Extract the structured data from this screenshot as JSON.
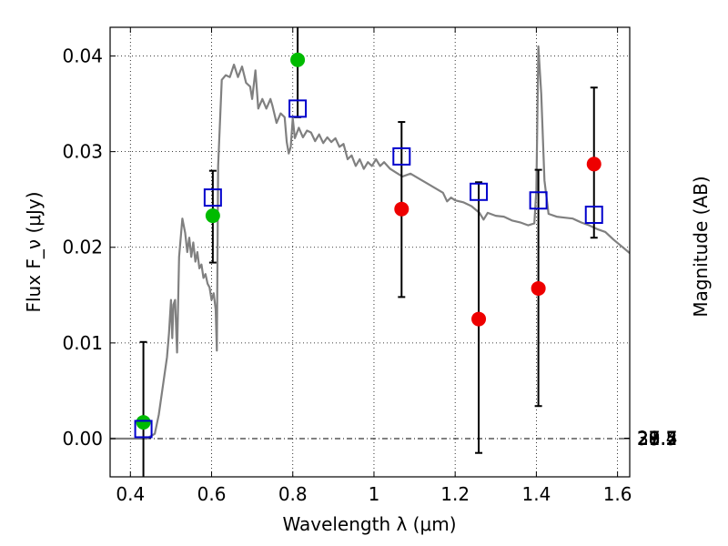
{
  "chart_data": {
    "type": "scatter",
    "title": "",
    "xlabel": "Wavelength λ (μm)",
    "ylabel": "Flux F_ν (μJy)",
    "y2label": "Magnitude (AB)",
    "xlim": [
      0.35,
      1.63
    ],
    "ylim": [
      -0.004,
      0.043
    ],
    "grid": true,
    "x_ticks": [
      "0.4",
      "0.6",
      "0.8",
      "1",
      "1.2",
      "1.4",
      "1.6"
    ],
    "y_ticks": [
      "0.00",
      "0.01",
      "0.02",
      "0.03",
      "0.04"
    ],
    "y2_ticks": [
      "27.4",
      "27.5",
      "27.7",
      "28",
      "28.2",
      "28.5",
      "29",
      "29.5",
      "30",
      "31"
    ],
    "colors": {
      "model": "#808080",
      "green": "#00bb00",
      "red": "#ee0000",
      "square": "#0000cc",
      "errorbar": "#000000"
    },
    "series": [
      {
        "name": "",
        "kind": "model-spectrum",
        "points": [
          [
            0.35,
            0.0
          ],
          [
            0.44,
            0.0
          ],
          [
            0.46,
            0.0005
          ],
          [
            0.47,
            0.0025
          ],
          [
            0.48,
            0.0055
          ],
          [
            0.49,
            0.0085
          ],
          [
            0.495,
            0.011
          ],
          [
            0.5,
            0.0145
          ],
          [
            0.503,
            0.0105
          ],
          [
            0.506,
            0.014
          ],
          [
            0.51,
            0.0145
          ],
          [
            0.515,
            0.009
          ],
          [
            0.52,
            0.019
          ],
          [
            0.528,
            0.023
          ],
          [
            0.535,
            0.0215
          ],
          [
            0.54,
            0.0195
          ],
          [
            0.545,
            0.021
          ],
          [
            0.55,
            0.019
          ],
          [
            0.555,
            0.0205
          ],
          [
            0.56,
            0.0185
          ],
          [
            0.565,
            0.0195
          ],
          [
            0.57,
            0.0178
          ],
          [
            0.575,
            0.0182
          ],
          [
            0.58,
            0.0168
          ],
          [
            0.585,
            0.0172
          ],
          [
            0.59,
            0.0162
          ],
          [
            0.595,
            0.0158
          ],
          [
            0.6,
            0.0145
          ],
          [
            0.605,
            0.0152
          ],
          [
            0.61,
            0.0135
          ],
          [
            0.613,
            0.0092
          ],
          [
            0.616,
            0.0285
          ],
          [
            0.625,
            0.0375
          ],
          [
            0.635,
            0.038
          ],
          [
            0.645,
            0.0378
          ],
          [
            0.655,
            0.0391
          ],
          [
            0.665,
            0.0378
          ],
          [
            0.675,
            0.0389
          ],
          [
            0.685,
            0.0372
          ],
          [
            0.695,
            0.0368
          ],
          [
            0.7,
            0.0355
          ],
          [
            0.708,
            0.0385
          ],
          [
            0.715,
            0.0345
          ],
          [
            0.725,
            0.0355
          ],
          [
            0.735,
            0.0345
          ],
          [
            0.745,
            0.0355
          ],
          [
            0.75,
            0.0348
          ],
          [
            0.76,
            0.033
          ],
          [
            0.77,
            0.034
          ],
          [
            0.78,
            0.0336
          ],
          [
            0.785,
            0.031
          ],
          [
            0.79,
            0.0298
          ],
          [
            0.795,
            0.0305
          ],
          [
            0.8,
            0.0335
          ],
          [
            0.805,
            0.0314
          ],
          [
            0.815,
            0.0325
          ],
          [
            0.825,
            0.0315
          ],
          [
            0.835,
            0.0322
          ],
          [
            0.845,
            0.032
          ],
          [
            0.855,
            0.0311
          ],
          [
            0.865,
            0.0318
          ],
          [
            0.875,
            0.0309
          ],
          [
            0.885,
            0.0315
          ],
          [
            0.895,
            0.031
          ],
          [
            0.905,
            0.0314
          ],
          [
            0.915,
            0.0305
          ],
          [
            0.925,
            0.0308
          ],
          [
            0.935,
            0.0292
          ],
          [
            0.945,
            0.0296
          ],
          [
            0.955,
            0.0285
          ],
          [
            0.965,
            0.0292
          ],
          [
            0.975,
            0.0282
          ],
          [
            0.985,
            0.0289
          ],
          [
            0.995,
            0.0285
          ],
          [
            1.005,
            0.0292
          ],
          [
            1.015,
            0.0285
          ],
          [
            1.025,
            0.0289
          ],
          [
            1.04,
            0.0282
          ],
          [
            1.055,
            0.0278
          ],
          [
            1.07,
            0.0274
          ],
          [
            1.09,
            0.0277
          ],
          [
            1.11,
            0.0272
          ],
          [
            1.13,
            0.0267
          ],
          [
            1.15,
            0.0262
          ],
          [
            1.17,
            0.0257
          ],
          [
            1.18,
            0.0248
          ],
          [
            1.19,
            0.0252
          ],
          [
            1.2,
            0.0249
          ],
          [
            1.22,
            0.0247
          ],
          [
            1.24,
            0.0243
          ],
          [
            1.26,
            0.0236
          ],
          [
            1.27,
            0.0229
          ],
          [
            1.28,
            0.0236
          ],
          [
            1.3,
            0.0233
          ],
          [
            1.32,
            0.0232
          ],
          [
            1.34,
            0.0228
          ],
          [
            1.36,
            0.0226
          ],
          [
            1.38,
            0.0223
          ],
          [
            1.395,
            0.0225
          ],
          [
            1.4,
            0.026
          ],
          [
            1.405,
            0.041
          ],
          [
            1.412,
            0.036
          ],
          [
            1.42,
            0.027
          ],
          [
            1.43,
            0.0235
          ],
          [
            1.45,
            0.0232
          ],
          [
            1.47,
            0.0231
          ],
          [
            1.49,
            0.023
          ],
          [
            1.51,
            0.0226
          ],
          [
            1.53,
            0.0223
          ],
          [
            1.55,
            0.0219
          ],
          [
            1.57,
            0.0216
          ],
          [
            1.59,
            0.0208
          ],
          [
            1.61,
            0.0201
          ],
          [
            1.63,
            0.0194
          ]
        ]
      },
      {
        "name": "",
        "kind": "filled-circles-green",
        "points": [
          [
            0.432,
            0.0017
          ],
          [
            0.603,
            0.0233
          ],
          [
            0.812,
            0.0396
          ]
        ]
      },
      {
        "name": "",
        "kind": "filled-circles-red",
        "points": [
          [
            1.068,
            0.024
          ],
          [
            1.258,
            0.0125
          ],
          [
            1.405,
            0.0157
          ],
          [
            1.542,
            0.0287
          ]
        ]
      },
      {
        "name": "",
        "kind": "open-squares-with-errorbars",
        "points": [
          {
            "x": 0.432,
            "y": 0.001,
            "lo": -0.0045,
            "hi": 0.0101
          },
          {
            "x": 0.603,
            "y": 0.0252,
            "lo": 0.0184,
            "hi": 0.028
          },
          {
            "x": 0.812,
            "y": 0.0345,
            "lo": 0.0336,
            "hi": 0.0445
          },
          {
            "x": 1.068,
            "y": 0.0295,
            "lo": 0.0148,
            "hi": 0.0331
          },
          {
            "x": 1.258,
            "y": 0.0258,
            "lo": -0.0015,
            "hi": 0.0268
          },
          {
            "x": 1.405,
            "y": 0.0249,
            "lo": 0.0034,
            "hi": 0.0281
          },
          {
            "x": 1.542,
            "y": 0.0234,
            "lo": 0.021,
            "hi": 0.0367
          }
        ]
      }
    ]
  }
}
